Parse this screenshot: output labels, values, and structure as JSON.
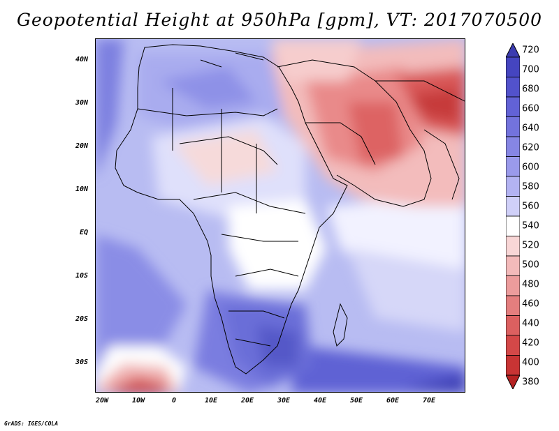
{
  "title": "Geopotential Height at 950hPa [gpm], VT: 2017070500",
  "credit": "GrADS: IGES/COLA",
  "map": {
    "lat_labels": [
      "40N",
      "30N",
      "20N",
      "10N",
      "EQ",
      "10S",
      "20S",
      "30S"
    ],
    "lon_labels": [
      "20W",
      "10W",
      "0",
      "10E",
      "20E",
      "30E",
      "40E",
      "50E",
      "60E",
      "70E"
    ]
  },
  "colorbar": {
    "labels": [
      "720",
      "700",
      "680",
      "660",
      "640",
      "620",
      "600",
      "580",
      "560",
      "540",
      "520",
      "500",
      "480",
      "460",
      "440",
      "420",
      "400",
      "380"
    ],
    "colors": [
      "#3b3bb0",
      "#4545c0",
      "#5252cc",
      "#6262d6",
      "#7373dd",
      "#8686e4",
      "#9a9aeb",
      "#b3b3f2",
      "#d0d0f8",
      "#ffffff",
      "#f8d6d6",
      "#f3baba",
      "#ec9c9c",
      "#e47e7e",
      "#dc6060",
      "#d44848",
      "#c83434",
      "#b52222"
    ]
  }
}
